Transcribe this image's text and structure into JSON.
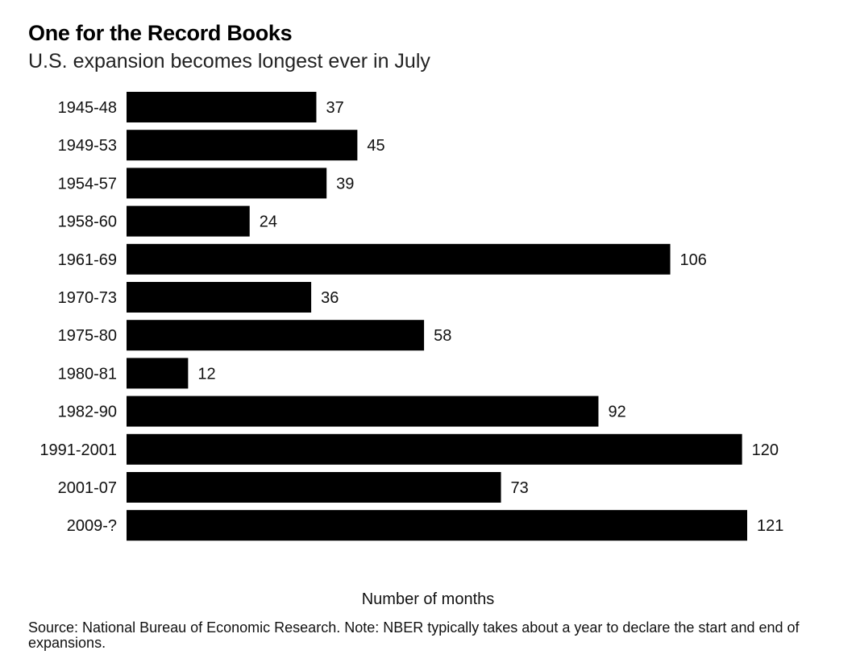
{
  "chart_data": {
    "type": "bar",
    "orientation": "horizontal",
    "title": "One for the Record Books",
    "subtitle": "U.S. expansion becomes longest ever in July",
    "xlabel": "Number of months",
    "ylabel": "",
    "categories": [
      "1945-48",
      "1949-53",
      "1954-57",
      "1958-60",
      "1961-69",
      "1970-73",
      "1975-80",
      "1980-81",
      "1982-90",
      "1991-2001",
      "2001-07",
      "2009-?"
    ],
    "values": [
      37,
      45,
      39,
      24,
      106,
      36,
      58,
      12,
      92,
      120,
      73,
      121
    ],
    "data_labels": [
      "37",
      "45",
      "39",
      "24",
      "106",
      "36",
      "58",
      "12",
      "92",
      "120",
      "73",
      "121"
    ],
    "xlim": [
      0,
      121
    ],
    "grid": false,
    "legend": "none",
    "bar_color": "#000000"
  },
  "source": "Source: National Bureau of Economic Research. Note: NBER typically takes about a year to declare the start and end of expansions."
}
